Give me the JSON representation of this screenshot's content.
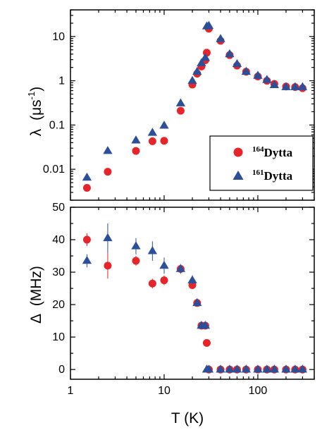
{
  "chart_data": [
    {
      "type": "scatter",
      "panel": "top",
      "ylabel_symbol": "λ",
      "ylabel_unit": "(μs",
      "ylabel_exp": "-1",
      "ylabel_close": ")",
      "xscale": "log",
      "yscale": "log",
      "xlim": [
        1,
        400
      ],
      "ylim": [
        0.002,
        40
      ],
      "yticks": [
        {
          "v": 0.01,
          "label": "0.01"
        },
        {
          "v": 0.1,
          "label": "0.1"
        },
        {
          "v": 1,
          "label": "1"
        },
        {
          "v": 10,
          "label": "10"
        }
      ],
      "legend": {
        "placement": "bottom-right",
        "entries": [
          {
            "series": 0,
            "sup": "164",
            "text": "Dytta"
          },
          {
            "series": 1,
            "sup": "161",
            "text": "Dytta"
          }
        ]
      },
      "series": [
        {
          "name": "164Dytta",
          "marker": "circle",
          "color": "#e8242b",
          "points": [
            {
              "x": 1.5,
              "y": 0.0038
            },
            {
              "x": 2.5,
              "y": 0.0088
            },
            {
              "x": 5,
              "y": 0.026
            },
            {
              "x": 7.5,
              "y": 0.043
            },
            {
              "x": 10,
              "y": 0.044
            },
            {
              "x": 15,
              "y": 0.21
            },
            {
              "x": 20,
              "y": 0.82
            },
            {
              "x": 22.5,
              "y": 1.45
            },
            {
              "x": 25,
              "y": 2.1
            },
            {
              "x": 27.5,
              "y": 2.9
            },
            {
              "x": 28.5,
              "y": 4.3
            },
            {
              "x": 30,
              "y": 15
            },
            {
              "x": 40,
              "y": 8.0
            },
            {
              "x": 50,
              "y": 3.8
            },
            {
              "x": 60,
              "y": 2.2
            },
            {
              "x": 75,
              "y": 1.6
            },
            {
              "x": 100,
              "y": 1.25
            },
            {
              "x": 125,
              "y": 1.0
            },
            {
              "x": 150,
              "y": 0.85
            },
            {
              "x": 200,
              "y": 0.74
            },
            {
              "x": 250,
              "y": 0.72
            },
            {
              "x": 300,
              "y": 0.68
            }
          ]
        },
        {
          "name": "161Dytta",
          "marker": "triangle",
          "color": "#2c4f9a",
          "points": [
            {
              "x": 1.5,
              "y": 0.0065
            },
            {
              "x": 2.5,
              "y": 0.026
            },
            {
              "x": 5,
              "y": 0.045
            },
            {
              "x": 7.5,
              "y": 0.067
            },
            {
              "x": 10,
              "y": 0.097
            },
            {
              "x": 15,
              "y": 0.31
            },
            {
              "x": 20,
              "y": 1.0
            },
            {
              "x": 22.5,
              "y": 1.6
            },
            {
              "x": 25,
              "y": 2.5
            },
            {
              "x": 27.5,
              "y": 3.3
            },
            {
              "x": 28.5,
              "y": 17
            },
            {
              "x": 30,
              "y": 17.5
            },
            {
              "x": 40,
              "y": 8.8
            },
            {
              "x": 50,
              "y": 4.0
            },
            {
              "x": 60,
              "y": 2.4
            },
            {
              "x": 75,
              "y": 1.6
            },
            {
              "x": 100,
              "y": 1.3
            },
            {
              "x": 125,
              "y": 1.05
            },
            {
              "x": 150,
              "y": 0.8
            },
            {
              "x": 200,
              "y": 0.72
            },
            {
              "x": 250,
              "y": 0.72
            },
            {
              "x": 300,
              "y": 0.72
            }
          ]
        }
      ]
    },
    {
      "type": "scatter",
      "panel": "bottom",
      "ylabel_symbol": "Δ",
      "ylabel_unit": "(MHz)",
      "xlabel": "T (K)",
      "xscale": "log",
      "yscale": "linear",
      "xlim": [
        1,
        400
      ],
      "ylim": [
        -3,
        50
      ],
      "xticks": [
        {
          "v": 1,
          "label": "1"
        },
        {
          "v": 10,
          "label": "10"
        },
        {
          "v": 100,
          "label": "100"
        }
      ],
      "yticks": [
        {
          "v": 0,
          "label": "0"
        },
        {
          "v": 10,
          "label": "10"
        },
        {
          "v": 20,
          "label": "20"
        },
        {
          "v": 30,
          "label": "30"
        },
        {
          "v": 40,
          "label": "40"
        },
        {
          "v": 50,
          "label": "50"
        }
      ],
      "series": [
        {
          "name": "164Dytta",
          "marker": "circle",
          "color": "#e8242b",
          "points": [
            {
              "x": 1.5,
              "y": 40,
              "err": 2
            },
            {
              "x": 2.5,
              "y": 32,
              "err": 4
            },
            {
              "x": 5,
              "y": 33.5,
              "err": 1.5
            },
            {
              "x": 7.5,
              "y": 26.5,
              "err": 1.5
            },
            {
              "x": 10,
              "y": 27.5,
              "err": 1.5
            },
            {
              "x": 15,
              "y": 31,
              "err": 1
            },
            {
              "x": 20,
              "y": 26,
              "err": 1
            },
            {
              "x": 22.5,
              "y": 20.5,
              "err": 1
            },
            {
              "x": 25,
              "y": 13.5,
              "err": 1
            },
            {
              "x": 27.5,
              "y": 13.5,
              "err": 1
            },
            {
              "x": 28.5,
              "y": 8.2,
              "err": 0.5
            },
            {
              "x": 30,
              "y": 0,
              "err": 0
            },
            {
              "x": 40,
              "y": 0,
              "err": 0
            },
            {
              "x": 50,
              "y": 0,
              "err": 0
            },
            {
              "x": 60,
              "y": 0,
              "err": 0
            },
            {
              "x": 75,
              "y": 0,
              "err": 0
            },
            {
              "x": 100,
              "y": 0,
              "err": 0
            },
            {
              "x": 125,
              "y": 0,
              "err": 0
            },
            {
              "x": 150,
              "y": 0,
              "err": 0
            },
            {
              "x": 200,
              "y": 0,
              "err": 0
            },
            {
              "x": 250,
              "y": 0,
              "err": 0
            },
            {
              "x": 300,
              "y": 0,
              "err": 0
            }
          ]
        },
        {
          "name": "161Dytta",
          "marker": "triangle",
          "color": "#2c4f9a",
          "points": [
            {
              "x": 1.5,
              "y": 33.5,
              "err": 2
            },
            {
              "x": 2.5,
              "y": 40.5,
              "err": 4.5
            },
            {
              "x": 5,
              "y": 38,
              "err": 2.5
            },
            {
              "x": 7.5,
              "y": 36.5,
              "err": 3
            },
            {
              "x": 10,
              "y": 32,
              "err": 2.5
            },
            {
              "x": 15,
              "y": 31,
              "err": 1.5
            },
            {
              "x": 20,
              "y": 27.5,
              "err": 1.5
            },
            {
              "x": 22.5,
              "y": 20.5,
              "err": 1
            },
            {
              "x": 25,
              "y": 13.5,
              "err": 1
            },
            {
              "x": 27.5,
              "y": 13.5,
              "err": 1
            },
            {
              "x": 28.5,
              "y": 0,
              "err": 0
            },
            {
              "x": 30,
              "y": 0,
              "err": 0
            },
            {
              "x": 40,
              "y": 0,
              "err": 0
            },
            {
              "x": 50,
              "y": 0,
              "err": 0
            },
            {
              "x": 60,
              "y": 0,
              "err": 0
            },
            {
              "x": 75,
              "y": 0,
              "err": 0
            },
            {
              "x": 100,
              "y": 0,
              "err": 0
            },
            {
              "x": 125,
              "y": 0,
              "err": 0
            },
            {
              "x": 150,
              "y": 0,
              "err": 0
            },
            {
              "x": 200,
              "y": 0,
              "err": 0
            },
            {
              "x": 250,
              "y": 0,
              "err": 0
            },
            {
              "x": 300,
              "y": 0,
              "err": 0
            }
          ]
        }
      ]
    }
  ]
}
